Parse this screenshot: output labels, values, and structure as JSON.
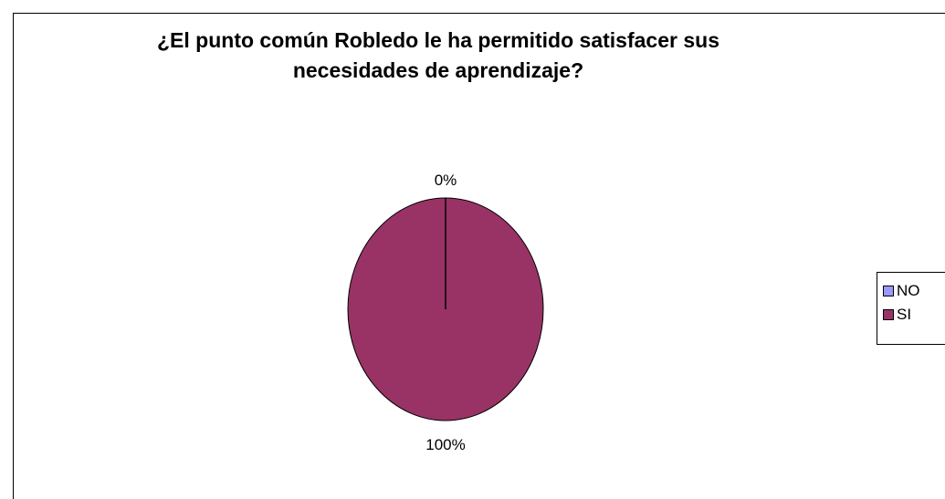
{
  "chart_data": {
    "type": "pie",
    "title_lines": [
      "¿El punto común Robledo le ha permitido satisfacer sus",
      "necesidades de aprendizaje?"
    ],
    "categories": [
      "NO",
      "SI"
    ],
    "values": [
      0,
      100
    ],
    "data_labels": [
      "0%",
      "100%"
    ],
    "colors": [
      "#9999ff",
      "#993366"
    ],
    "legend_position": "right"
  }
}
